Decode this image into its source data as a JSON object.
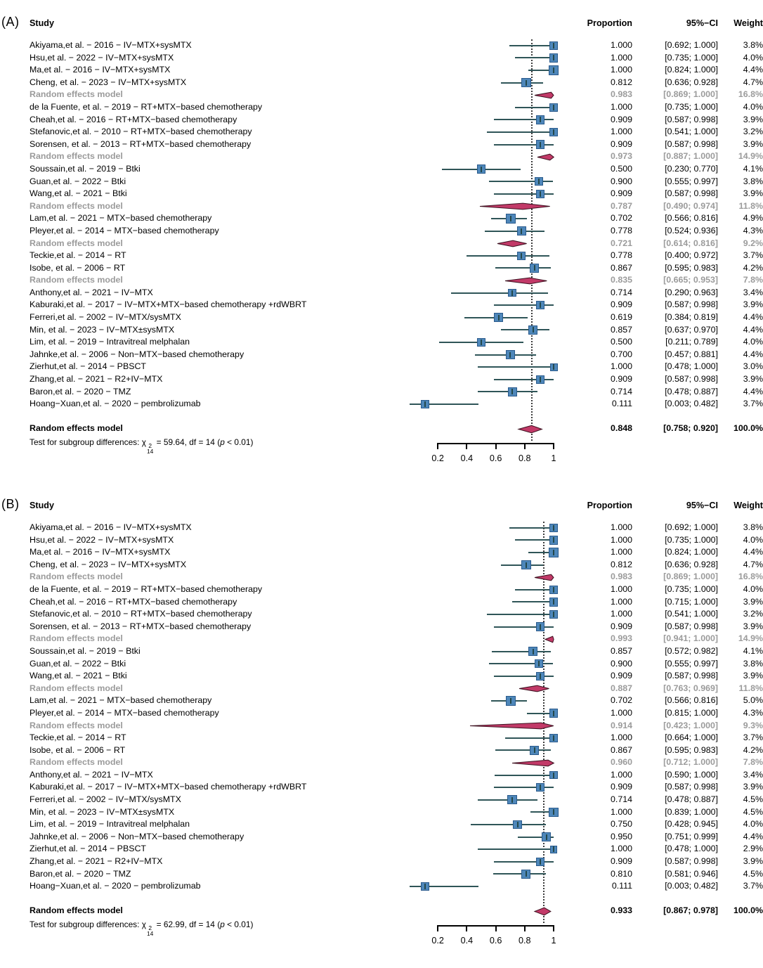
{
  "chart_data": {
    "type": "forest",
    "colors": {
      "square_fill": "#4e87ba",
      "square_border": "#2a5a8c",
      "ci_line": "#2f5558",
      "ci_tick": "#24484b",
      "diamond_fill": "#c23a68",
      "diamond_border": "#3c0f1e",
      "subgroup_text": "#9b9b9b",
      "text": "#000000"
    },
    "panels": [
      {
        "tag": "(A)",
        "header": {
          "study": "Study",
          "proportion": "Proportion",
          "ci": "95%−CI",
          "weight": "Weight"
        },
        "axis": {
          "min": 0.2,
          "max": 1.0,
          "ticks": [
            0.2,
            0.4,
            0.6,
            0.8,
            1
          ],
          "tick_labels": [
            "0.2",
            "0.4",
            "0.6",
            "0.8",
            "1"
          ]
        },
        "overall_line": 0.848,
        "rows": [
          {
            "label": "Akiyama,et al. − 2016 − IV−MTX+sysMTX",
            "type": "study",
            "est": 1.0,
            "lo": 0.692,
            "hi": 1.0,
            "proportion": "1.000",
            "ci": "[0.692; 1.000]",
            "weight": "3.8%"
          },
          {
            "label": "Hsu,et al. − 2022 − IV−MTX+sysMTX",
            "type": "study",
            "est": 1.0,
            "lo": 0.735,
            "hi": 1.0,
            "proportion": "1.000",
            "ci": "[0.735; 1.000]",
            "weight": "4.0%"
          },
          {
            "label": "Ma,et al. − 2016 − IV−MTX+sysMTX",
            "type": "study",
            "est": 1.0,
            "lo": 0.824,
            "hi": 1.0,
            "proportion": "1.000",
            "ci": "[0.824; 1.000]",
            "weight": "4.4%"
          },
          {
            "label": "Cheng, et al. − 2023 − IV−MTX+sysMTX",
            "type": "study",
            "est": 0.812,
            "lo": 0.636,
            "hi": 0.928,
            "proportion": "0.812",
            "ci": "[0.636; 0.928]",
            "weight": "4.7%"
          },
          {
            "label": "Random effects model",
            "type": "subgroup",
            "est": 0.983,
            "lo": 0.869,
            "hi": 1.0,
            "proportion": "0.983",
            "ci": "[0.869; 1.000]",
            "weight": "16.8%"
          },
          {
            "label": "de la Fuente, et al. − 2019 − RT+MTX−based chemotherapy",
            "type": "study",
            "est": 1.0,
            "lo": 0.735,
            "hi": 1.0,
            "proportion": "1.000",
            "ci": "[0.735; 1.000]",
            "weight": "4.0%"
          },
          {
            "label": "Cheah,et al. − 2016 − RT+MTX−based chemotherapy",
            "type": "study",
            "est": 0.909,
            "lo": 0.587,
            "hi": 0.998,
            "proportion": "0.909",
            "ci": "[0.587; 0.998]",
            "weight": "3.9%"
          },
          {
            "label": "Stefanovic,et al. − 2010 − RT+MTX−based chemotherapy",
            "type": "study",
            "est": 1.0,
            "lo": 0.541,
            "hi": 1.0,
            "proportion": "1.000",
            "ci": "[0.541; 1.000]",
            "weight": "3.2%"
          },
          {
            "label": "Sorensen, et al. − 2013 − RT+MTX−based chemotherapy",
            "type": "study",
            "est": 0.909,
            "lo": 0.587,
            "hi": 0.998,
            "proportion": "0.909",
            "ci": "[0.587; 0.998]",
            "weight": "3.9%"
          },
          {
            "label": "Random effects model",
            "type": "subgroup",
            "est": 0.973,
            "lo": 0.887,
            "hi": 1.0,
            "proportion": "0.973",
            "ci": "[0.887; 1.000]",
            "weight": "14.9%"
          },
          {
            "label": "Soussain,et al. − 2019 − Btki",
            "type": "study",
            "est": 0.5,
            "lo": 0.23,
            "hi": 0.77,
            "proportion": "0.500",
            "ci": "[0.230; 0.770]",
            "weight": "4.1%"
          },
          {
            "label": "Guan,et al. − 2022 − Btki",
            "type": "study",
            "est": 0.9,
            "lo": 0.555,
            "hi": 0.997,
            "proportion": "0.900",
            "ci": "[0.555; 0.997]",
            "weight": "3.8%"
          },
          {
            "label": "Wang,et al. − 2021 − Btki",
            "type": "study",
            "est": 0.909,
            "lo": 0.587,
            "hi": 0.998,
            "proportion": "0.909",
            "ci": "[0.587; 0.998]",
            "weight": "3.9%"
          },
          {
            "label": "Random effects model",
            "type": "subgroup",
            "est": 0.787,
            "lo": 0.49,
            "hi": 0.974,
            "proportion": "0.787",
            "ci": "[0.490; 0.974]",
            "weight": "11.8%"
          },
          {
            "label": "Lam,et al. − 2021 − MTX−based chemotherapy",
            "type": "study",
            "est": 0.702,
            "lo": 0.566,
            "hi": 0.816,
            "proportion": "0.702",
            "ci": "[0.566; 0.816]",
            "weight": "4.9%"
          },
          {
            "label": "Pleyer,et al. − 2014 − MTX−based chemotherapy",
            "type": "study",
            "est": 0.778,
            "lo": 0.524,
            "hi": 0.936,
            "proportion": "0.778",
            "ci": "[0.524; 0.936]",
            "weight": "4.3%"
          },
          {
            "label": "Random effects model",
            "type": "subgroup",
            "est": 0.721,
            "lo": 0.614,
            "hi": 0.816,
            "proportion": "0.721",
            "ci": "[0.614; 0.816]",
            "weight": "9.2%"
          },
          {
            "label": "Teckie,et al. − 2014 − RT",
            "type": "study",
            "est": 0.778,
            "lo": 0.4,
            "hi": 0.972,
            "proportion": "0.778",
            "ci": "[0.400; 0.972]",
            "weight": "3.7%"
          },
          {
            "label": "Isobe, et al. − 2006 − RT",
            "type": "study",
            "est": 0.867,
            "lo": 0.595,
            "hi": 0.983,
            "proportion": "0.867",
            "ci": "[0.595; 0.983]",
            "weight": "4.2%"
          },
          {
            "label": "Random effects model",
            "type": "subgroup",
            "est": 0.835,
            "lo": 0.665,
            "hi": 0.953,
            "proportion": "0.835",
            "ci": "[0.665; 0.953]",
            "weight": "7.8%"
          },
          {
            "label": "Anthony,et al. − 2021 − IV−MTX",
            "type": "study",
            "est": 0.714,
            "lo": 0.29,
            "hi": 0.963,
            "proportion": "0.714",
            "ci": "[0.290; 0.963]",
            "weight": "3.4%"
          },
          {
            "label": "Kaburaki,et al. − 2017 − IV−MTX+MTX−based chemotherapy +rdWBRT",
            "type": "study",
            "est": 0.909,
            "lo": 0.587,
            "hi": 0.998,
            "proportion": "0.909",
            "ci": "[0.587; 0.998]",
            "weight": "3.9%"
          },
          {
            "label": "Ferreri,et al. − 2002 − IV−MTX/sysMTX",
            "type": "study",
            "est": 0.619,
            "lo": 0.384,
            "hi": 0.819,
            "proportion": "0.619",
            "ci": "[0.384; 0.819]",
            "weight": "4.4%"
          },
          {
            "label": "Min, et al. − 2023 − IV−MTX±sysMTX",
            "type": "study",
            "est": 0.857,
            "lo": 0.637,
            "hi": 0.97,
            "proportion": "0.857",
            "ci": "[0.637; 0.970]",
            "weight": "4.4%"
          },
          {
            "label": "Lim, et al. − 2019 − Intravitreal melphalan",
            "type": "study",
            "est": 0.5,
            "lo": 0.211,
            "hi": 0.789,
            "proportion": "0.500",
            "ci": "[0.211; 0.789]",
            "weight": "4.0%"
          },
          {
            "label": "Jahnke,et al. − 2006 − Non−MTX−based chemotherapy",
            "type": "study",
            "est": 0.7,
            "lo": 0.457,
            "hi": 0.881,
            "proportion": "0.700",
            "ci": "[0.457; 0.881]",
            "weight": "4.4%"
          },
          {
            "label": "Zierhut,et al. − 2014 − PBSCT",
            "type": "study",
            "est": 1.0,
            "lo": 0.478,
            "hi": 1.0,
            "proportion": "1.000",
            "ci": "[0.478; 1.000]",
            "weight": "3.0%"
          },
          {
            "label": "Zhang,et al. − 2021 − R2+IV−MTX",
            "type": "study",
            "est": 0.909,
            "lo": 0.587,
            "hi": 0.998,
            "proportion": "0.909",
            "ci": "[0.587; 0.998]",
            "weight": "3.9%"
          },
          {
            "label": "Baron,et al. − 2020 − TMZ",
            "type": "study",
            "est": 0.714,
            "lo": 0.478,
            "hi": 0.887,
            "proportion": "0.714",
            "ci": "[0.478; 0.887]",
            "weight": "4.4%"
          },
          {
            "label": "Hoang−Xuan,et al. − 2020 − pembrolizumab",
            "type": "study",
            "est": 0.111,
            "lo": 0.003,
            "hi": 0.482,
            "proportion": "0.111",
            "ci": "[0.003; 0.482]",
            "weight": "3.7%"
          }
        ],
        "overall": {
          "label": "Random effects model",
          "type": "overall",
          "est": 0.848,
          "lo": 0.758,
          "hi": 0.92,
          "proportion": "0.848",
          "ci": "[0.758; 0.920]",
          "weight": "100.0%"
        },
        "test": {
          "prefix": "Test for subgroup differences: ",
          "chi": "χ",
          "sup": "2",
          "sub": "14",
          "mid": " = 59.64, df = 14 (",
          "p": "p",
          "suffix": " < 0.01)"
        }
      },
      {
        "tag": "(B)",
        "header": {
          "study": "Study",
          "proportion": "Proportion",
          "ci": "95%−CI",
          "weight": "Weight"
        },
        "axis": {
          "min": 0.2,
          "max": 1.0,
          "ticks": [
            0.2,
            0.4,
            0.6,
            0.8,
            1
          ],
          "tick_labels": [
            "0.2",
            "0.4",
            "0.6",
            "0.8",
            "1"
          ]
        },
        "overall_line": 0.933,
        "rows": [
          {
            "label": "Akiyama,et al. − 2016 − IV−MTX+sysMTX",
            "type": "study",
            "est": 1.0,
            "lo": 0.692,
            "hi": 1.0,
            "proportion": "1.000",
            "ci": "[0.692; 1.000]",
            "weight": "3.8%"
          },
          {
            "label": "Hsu,et al. − 2022 − IV−MTX+sysMTX",
            "type": "study",
            "est": 1.0,
            "lo": 0.735,
            "hi": 1.0,
            "proportion": "1.000",
            "ci": "[0.735; 1.000]",
            "weight": "4.0%"
          },
          {
            "label": "Ma,et al. − 2016 − IV−MTX+sysMTX",
            "type": "study",
            "est": 1.0,
            "lo": 0.824,
            "hi": 1.0,
            "proportion": "1.000",
            "ci": "[0.824; 1.000]",
            "weight": "4.4%"
          },
          {
            "label": "Cheng, et al. − 2023 − IV−MTX+sysMTX",
            "type": "study",
            "est": 0.812,
            "lo": 0.636,
            "hi": 0.928,
            "proportion": "0.812",
            "ci": "[0.636; 0.928]",
            "weight": "4.7%"
          },
          {
            "label": "Random effects model",
            "type": "subgroup",
            "est": 0.983,
            "lo": 0.869,
            "hi": 1.0,
            "proportion": "0.983",
            "ci": "[0.869; 1.000]",
            "weight": "16.8%"
          },
          {
            "label": "de la Fuente, et al. − 2019 − RT+MTX−based chemotherapy",
            "type": "study",
            "est": 1.0,
            "lo": 0.735,
            "hi": 1.0,
            "proportion": "1.000",
            "ci": "[0.735; 1.000]",
            "weight": "4.0%"
          },
          {
            "label": "Cheah,et al. − 2016 − RT+MTX−based chemotherapy",
            "type": "study",
            "est": 1.0,
            "lo": 0.715,
            "hi": 1.0,
            "proportion": "1.000",
            "ci": "[0.715; 1.000]",
            "weight": "3.9%"
          },
          {
            "label": "Stefanovic,et al. − 2010 − RT+MTX−based chemotherapy",
            "type": "study",
            "est": 1.0,
            "lo": 0.541,
            "hi": 1.0,
            "proportion": "1.000",
            "ci": "[0.541; 1.000]",
            "weight": "3.2%"
          },
          {
            "label": "Sorensen, et al. − 2013 − RT+MTX−based chemotherapy",
            "type": "study",
            "est": 0.909,
            "lo": 0.587,
            "hi": 0.998,
            "proportion": "0.909",
            "ci": "[0.587; 0.998]",
            "weight": "3.9%"
          },
          {
            "label": "Random effects model",
            "type": "subgroup",
            "est": 0.993,
            "lo": 0.941,
            "hi": 1.0,
            "proportion": "0.993",
            "ci": "[0.941; 1.000]",
            "weight": "14.9%"
          },
          {
            "label": "Soussain,et al. − 2019 − Btki",
            "type": "study",
            "est": 0.857,
            "lo": 0.572,
            "hi": 0.982,
            "proportion": "0.857",
            "ci": "[0.572; 0.982]",
            "weight": "4.1%"
          },
          {
            "label": "Guan,et al. − 2022 − Btki",
            "type": "study",
            "est": 0.9,
            "lo": 0.555,
            "hi": 0.997,
            "proportion": "0.900",
            "ci": "[0.555; 0.997]",
            "weight": "3.8%"
          },
          {
            "label": "Wang,et al. − 2021 − Btki",
            "type": "study",
            "est": 0.909,
            "lo": 0.587,
            "hi": 0.998,
            "proportion": "0.909",
            "ci": "[0.587; 0.998]",
            "weight": "3.9%"
          },
          {
            "label": "Random effects model",
            "type": "subgroup",
            "est": 0.887,
            "lo": 0.763,
            "hi": 0.969,
            "proportion": "0.887",
            "ci": "[0.763; 0.969]",
            "weight": "11.8%"
          },
          {
            "label": "Lam,et al. − 2021 − MTX−based chemotherapy",
            "type": "study",
            "est": 0.702,
            "lo": 0.566,
            "hi": 0.816,
            "proportion": "0.702",
            "ci": "[0.566; 0.816]",
            "weight": "5.0%"
          },
          {
            "label": "Pleyer,et al. − 2014 − MTX−based chemotherapy",
            "type": "study",
            "est": 1.0,
            "lo": 0.815,
            "hi": 1.0,
            "proportion": "1.000",
            "ci": "[0.815; 1.000]",
            "weight": "4.3%"
          },
          {
            "label": "Random effects model",
            "type": "subgroup",
            "est": 0.914,
            "lo": 0.423,
            "hi": 1.0,
            "proportion": "0.914",
            "ci": "[0.423; 1.000]",
            "weight": "9.3%"
          },
          {
            "label": "Teckie,et al. − 2014 − RT",
            "type": "study",
            "est": 1.0,
            "lo": 0.664,
            "hi": 1.0,
            "proportion": "1.000",
            "ci": "[0.664; 1.000]",
            "weight": "3.7%"
          },
          {
            "label": "Isobe, et al. − 2006 − RT",
            "type": "study",
            "est": 0.867,
            "lo": 0.595,
            "hi": 0.983,
            "proportion": "0.867",
            "ci": "[0.595; 0.983]",
            "weight": "4.2%"
          },
          {
            "label": "Random effects model",
            "type": "subgroup",
            "est": 0.96,
            "lo": 0.712,
            "hi": 1.0,
            "proportion": "0.960",
            "ci": "[0.712; 1.000]",
            "weight": "7.8%"
          },
          {
            "label": "Anthony,et al. − 2021 − IV−MTX",
            "type": "study",
            "est": 1.0,
            "lo": 0.59,
            "hi": 1.0,
            "proportion": "1.000",
            "ci": "[0.590; 1.000]",
            "weight": "3.4%"
          },
          {
            "label": "Kaburaki,et al. − 2017 − IV−MTX+MTX−based chemotherapy +rdWBRT",
            "type": "study",
            "est": 0.909,
            "lo": 0.587,
            "hi": 0.998,
            "proportion": "0.909",
            "ci": "[0.587; 0.998]",
            "weight": "3.9%"
          },
          {
            "label": "Ferreri,et al. − 2002 − IV−MTX/sysMTX",
            "type": "study",
            "est": 0.714,
            "lo": 0.478,
            "hi": 0.887,
            "proportion": "0.714",
            "ci": "[0.478; 0.887]",
            "weight": "4.5%"
          },
          {
            "label": "Min, et al. − 2023 − IV−MTX±sysMTX",
            "type": "study",
            "est": 1.0,
            "lo": 0.839,
            "hi": 1.0,
            "proportion": "1.000",
            "ci": "[0.839; 1.000]",
            "weight": "4.5%"
          },
          {
            "label": "Lim, et al. − 2019 − Intravitreal melphalan",
            "type": "study",
            "est": 0.75,
            "lo": 0.428,
            "hi": 0.945,
            "proportion": "0.750",
            "ci": "[0.428; 0.945]",
            "weight": "4.0%"
          },
          {
            "label": "Jahnke,et al. − 2006 − Non−MTX−based chemotherapy",
            "type": "study",
            "est": 0.95,
            "lo": 0.751,
            "hi": 0.999,
            "proportion": "0.950",
            "ci": "[0.751; 0.999]",
            "weight": "4.4%"
          },
          {
            "label": "Zierhut,et al. − 2014 − PBSCT",
            "type": "study",
            "est": 1.0,
            "lo": 0.478,
            "hi": 1.0,
            "proportion": "1.000",
            "ci": "[0.478; 1.000]",
            "weight": "2.9%"
          },
          {
            "label": "Zhang,et al. − 2021 − R2+IV−MTX",
            "type": "study",
            "est": 0.909,
            "lo": 0.587,
            "hi": 0.998,
            "proportion": "0.909",
            "ci": "[0.587; 0.998]",
            "weight": "3.9%"
          },
          {
            "label": "Baron,et al. − 2020 − TMZ",
            "type": "study",
            "est": 0.81,
            "lo": 0.581,
            "hi": 0.946,
            "proportion": "0.810",
            "ci": "[0.581; 0.946]",
            "weight": "4.5%"
          },
          {
            "label": "Hoang−Xuan,et al. − 2020 − pembrolizumab",
            "type": "study",
            "est": 0.111,
            "lo": 0.003,
            "hi": 0.482,
            "proportion": "0.111",
            "ci": "[0.003; 0.482]",
            "weight": "3.7%"
          }
        ],
        "overall": {
          "label": "Random effects model",
          "type": "overall",
          "est": 0.933,
          "lo": 0.867,
          "hi": 0.978,
          "proportion": "0.933",
          "ci": "[0.867; 0.978]",
          "weight": "100.0%"
        },
        "test": {
          "prefix": "Test for subgroup differences: ",
          "chi": "χ",
          "sup": "2",
          "sub": "14",
          "mid": " = 62.99, df = 14 (",
          "p": "p",
          "suffix": " < 0.01)"
        }
      }
    ]
  }
}
